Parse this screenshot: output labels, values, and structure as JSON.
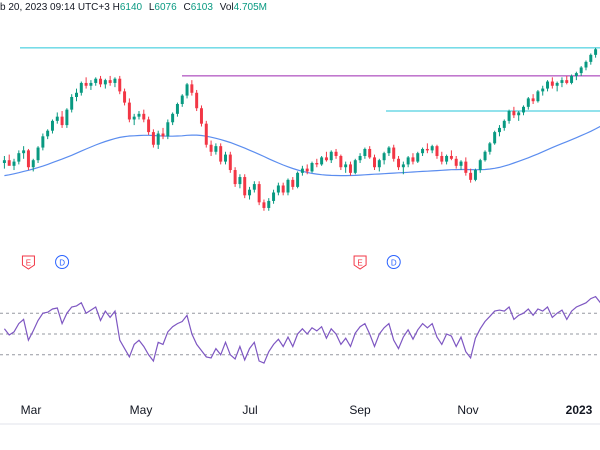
{
  "header": {
    "date_text": "b 20, 2023 09:14 UTC+3",
    "high_label": "H",
    "high_value": "6140",
    "low_label": "L",
    "low_value": "6076",
    "close_label": "C",
    "close_value": "6103",
    "vol_label": "Vol",
    "vol_value": "4.705M"
  },
  "colors": {
    "up": "#089981",
    "down": "#f23645",
    "ma": "#5b8def",
    "rsi": "#7e57c2",
    "cyan_line": "#26c6da",
    "purple_line": "#9c27b0",
    "grid_dash": "#9598a1",
    "earnings_badge": "#f23645",
    "dividend_badge": "#2962ff",
    "axis_text": "#131722"
  },
  "chart_data": [
    {
      "type": "candlestick",
      "title": "",
      "x_labels": [
        "Mar",
        "May",
        "Jul",
        "Sep",
        "Nov",
        "2023"
      ],
      "candles": [
        [
          4870,
          4920,
          4830,
          4890
        ],
        [
          4890,
          4930,
          4860,
          4850
        ],
        [
          4850,
          4900,
          4820,
          4880
        ],
        [
          4880,
          4960,
          4860,
          4940
        ],
        [
          4940,
          4990,
          4900,
          4960
        ],
        [
          4960,
          4970,
          4820,
          4840
        ],
        [
          4840,
          4900,
          4810,
          4890
        ],
        [
          4890,
          4990,
          4870,
          4980
        ],
        [
          4980,
          5080,
          4960,
          5060
        ],
        [
          5060,
          5110,
          5040,
          5100
        ],
        [
          5100,
          5180,
          5080,
          5170
        ],
        [
          5170,
          5230,
          5150,
          5200
        ],
        [
          5200,
          5240,
          5120,
          5140
        ],
        [
          5140,
          5260,
          5120,
          5250
        ],
        [
          5250,
          5360,
          5230,
          5340
        ],
        [
          5340,
          5400,
          5310,
          5370
        ],
        [
          5370,
          5450,
          5350,
          5440
        ],
        [
          5440,
          5480,
          5400,
          5420
        ],
        [
          5420,
          5460,
          5390,
          5440
        ],
        [
          5440,
          5480,
          5420,
          5470
        ],
        [
          5470,
          5490,
          5410,
          5430
        ],
        [
          5430,
          5470,
          5400,
          5460
        ],
        [
          5460,
          5490,
          5420,
          5440
        ],
        [
          5440,
          5480,
          5410,
          5470
        ],
        [
          5470,
          5490,
          5360,
          5380
        ],
        [
          5380,
          5400,
          5280,
          5300
        ],
        [
          5300,
          5330,
          5160,
          5180
        ],
        [
          5180,
          5220,
          5140,
          5200
        ],
        [
          5200,
          5240,
          5180,
          5220
        ],
        [
          5220,
          5250,
          5160,
          5180
        ],
        [
          5180,
          5200,
          5070,
          5090
        ],
        [
          5090,
          5110,
          4980,
          5000
        ],
        [
          5000,
          5100,
          4970,
          5080
        ],
        [
          5080,
          5120,
          5040,
          5060
        ],
        [
          5060,
          5180,
          5040,
          5160
        ],
        [
          5160,
          5230,
          5140,
          5220
        ],
        [
          5220,
          5300,
          5200,
          5290
        ],
        [
          5290,
          5360,
          5270,
          5350
        ],
        [
          5350,
          5440,
          5330,
          5430
        ],
        [
          5430,
          5460,
          5350,
          5370
        ],
        [
          5370,
          5390,
          5240,
          5260
        ],
        [
          5260,
          5280,
          5130,
          5150
        ],
        [
          5150,
          5170,
          4980,
          5000
        ],
        [
          5000,
          5030,
          4920,
          4950
        ],
        [
          4950,
          5010,
          4930,
          4990
        ],
        [
          4990,
          5010,
          4860,
          4880
        ],
        [
          4880,
          4950,
          4860,
          4930
        ],
        [
          4930,
          4950,
          4800,
          4820
        ],
        [
          4820,
          4840,
          4700,
          4720
        ],
        [
          4720,
          4790,
          4690,
          4770
        ],
        [
          4770,
          4790,
          4620,
          4640
        ],
        [
          4640,
          4700,
          4610,
          4680
        ],
        [
          4680,
          4740,
          4660,
          4720
        ],
        [
          4720,
          4740,
          4570,
          4590
        ],
        [
          4590,
          4610,
          4530,
          4550
        ],
        [
          4550,
          4620,
          4530,
          4600
        ],
        [
          4600,
          4680,
          4580,
          4660
        ],
        [
          4660,
          4730,
          4640,
          4710
        ],
        [
          4710,
          4730,
          4640,
          4660
        ],
        [
          4660,
          4760,
          4640,
          4750
        ],
        [
          4750,
          4770,
          4680,
          4700
        ],
        [
          4700,
          4810,
          4690,
          4800
        ],
        [
          4800,
          4850,
          4780,
          4830
        ],
        [
          4830,
          4860,
          4790,
          4810
        ],
        [
          4810,
          4880,
          4800,
          4870
        ],
        [
          4870,
          4900,
          4840,
          4860
        ],
        [
          4860,
          4920,
          4850,
          4910
        ],
        [
          4910,
          4950,
          4880,
          4890
        ],
        [
          4890,
          4960,
          4870,
          4950
        ],
        [
          4950,
          4970,
          4900,
          4920
        ],
        [
          4920,
          4930,
          4820,
          4840
        ],
        [
          4840,
          4880,
          4800,
          4860
        ],
        [
          4860,
          4880,
          4780,
          4800
        ],
        [
          4800,
          4900,
          4790,
          4890
        ],
        [
          4890,
          4940,
          4870,
          4920
        ],
        [
          4920,
          4980,
          4900,
          4970
        ],
        [
          4970,
          4990,
          4900,
          4910
        ],
        [
          4910,
          4930,
          4820,
          4840
        ],
        [
          4840,
          4900,
          4810,
          4890
        ],
        [
          4890,
          4950,
          4860,
          4940
        ],
        [
          4940,
          4990,
          4920,
          4980
        ],
        [
          4980,
          5000,
          4880,
          4900
        ],
        [
          4900,
          4920,
          4820,
          4840
        ],
        [
          4840,
          4880,
          4790,
          4860
        ],
        [
          4860,
          4920,
          4840,
          4910
        ],
        [
          4910,
          4940,
          4860,
          4880
        ],
        [
          4880,
          4950,
          4870,
          4940
        ],
        [
          4940,
          4980,
          4920,
          4970
        ],
        [
          4970,
          5010,
          4940,
          4960
        ],
        [
          4960,
          5000,
          4940,
          4990
        ],
        [
          4990,
          5000,
          4900,
          4920
        ],
        [
          4920,
          4950,
          4860,
          4880
        ],
        [
          4880,
          4930,
          4860,
          4920
        ],
        [
          4920,
          4960,
          4890,
          4900
        ],
        [
          4900,
          4920,
          4830,
          4850
        ],
        [
          4850,
          4890,
          4820,
          4880
        ],
        [
          4880,
          4910,
          4780,
          4800
        ],
        [
          4800,
          4830,
          4730,
          4750
        ],
        [
          4750,
          4830,
          4740,
          4820
        ],
        [
          4820,
          4900,
          4800,
          4890
        ],
        [
          4890,
          4960,
          4880,
          4950
        ],
        [
          4950,
          5020,
          4930,
          5010
        ],
        [
          5010,
          5100,
          5000,
          5090
        ],
        [
          5090,
          5140,
          5060,
          5120
        ],
        [
          5120,
          5180,
          5100,
          5170
        ],
        [
          5170,
          5250,
          5150,
          5240
        ],
        [
          5240,
          5270,
          5190,
          5210
        ],
        [
          5210,
          5240,
          5170,
          5230
        ],
        [
          5230,
          5280,
          5210,
          5270
        ],
        [
          5270,
          5340,
          5250,
          5330
        ],
        [
          5330,
          5360,
          5290,
          5310
        ],
        [
          5310,
          5390,
          5300,
          5380
        ],
        [
          5380,
          5420,
          5350,
          5400
        ],
        [
          5400,
          5460,
          5380,
          5450
        ],
        [
          5450,
          5480,
          5400,
          5420
        ],
        [
          5420,
          5450,
          5380,
          5440
        ],
        [
          5440,
          5480,
          5410,
          5460
        ],
        [
          5460,
          5490,
          5430,
          5440
        ],
        [
          5440,
          5500,
          5430,
          5490
        ],
        [
          5490,
          5520,
          5460,
          5510
        ],
        [
          5510,
          5560,
          5490,
          5550
        ],
        [
          5550,
          5600,
          5530,
          5590
        ],
        [
          5590,
          5650,
          5570,
          5640
        ],
        [
          5640,
          5690,
          5620,
          5680
        ]
      ],
      "moving_average": [
        4780,
        4786,
        4793,
        4801,
        4810,
        4818,
        4827,
        4837,
        4848,
        4860,
        4873,
        4886,
        4898,
        4911,
        4925,
        4940,
        4955,
        4970,
        4984,
        4998,
        5011,
        5023,
        5034,
        5044,
        5052,
        5058,
        5062,
        5064,
        5066,
        5067,
        5067,
        5066,
        5064,
        5062,
        5061,
        5061,
        5062,
        5064,
        5067,
        5069,
        5069,
        5066,
        5061,
        5054,
        5046,
        5037,
        5027,
        5016,
        5003,
        4990,
        4976,
        4961,
        4947,
        4932,
        4916,
        4900,
        4885,
        4870,
        4856,
        4843,
        4831,
        4820,
        4811,
        4803,
        4796,
        4791,
        4787,
        4784,
        4782,
        4781,
        4780,
        4780,
        4781,
        4782,
        4784,
        4786,
        4788,
        4790,
        4792,
        4794,
        4796,
        4798,
        4800,
        4802,
        4804,
        4806,
        4808,
        4810,
        4812,
        4814,
        4816,
        4818,
        4820,
        4822,
        4823,
        4824,
        4824,
        4823,
        4822,
        4822,
        4824,
        4827,
        4832,
        4839,
        4848,
        4858,
        4870,
        4882,
        4894,
        4907,
        4921,
        4935,
        4950,
        4965,
        4980,
        4994,
        5008,
        5022,
        5036,
        5050,
        5065,
        5080,
        5096,
        5113,
        5131
      ],
      "horizontal_levels": [
        {
          "value": 5690,
          "color": "cyan"
        },
        {
          "value": 5490,
          "color": "purple"
        },
        {
          "value": 5240,
          "color": "cyan"
        }
      ],
      "event_badges": [
        {
          "label": "E",
          "type": "earnings",
          "index": 5
        },
        {
          "label": "D",
          "type": "dividend",
          "index": 12
        },
        {
          "label": "E",
          "type": "earnings",
          "index": 74
        },
        {
          "label": "D",
          "type": "dividend",
          "index": 81
        }
      ]
    },
    {
      "type": "line",
      "title": "",
      "series": [
        {
          "values": [
            55,
            49,
            52,
            60,
            64,
            44,
            53,
            63,
            70,
            71,
            74,
            75,
            60,
            70,
            76,
            77,
            80,
            70,
            73,
            76,
            63,
            72,
            66,
            72,
            44,
            36,
            28,
            40,
            44,
            38,
            30,
            24,
            42,
            40,
            52,
            57,
            60,
            62,
            68,
            50,
            40,
            34,
            28,
            27,
            36,
            30,
            42,
            30,
            26,
            38,
            25,
            36,
            42,
            24,
            22,
            33,
            40,
            45,
            38,
            47,
            38,
            50,
            55,
            50,
            56,
            53,
            57,
            46,
            55,
            50,
            40,
            46,
            38,
            51,
            57,
            60,
            50,
            38,
            50,
            56,
            60,
            44,
            36,
            47,
            54,
            45,
            54,
            60,
            56,
            60,
            47,
            40,
            50,
            48,
            38,
            47,
            33,
            27,
            46,
            55,
            62,
            67,
            72,
            73,
            72,
            76,
            64,
            68,
            70,
            74,
            68,
            74,
            72,
            76,
            66,
            70,
            73,
            64,
            72,
            76,
            78,
            80,
            84,
            86,
            80
          ]
        }
      ],
      "ylim": [
        0,
        100
      ],
      "reference_levels": [
        70,
        50,
        30
      ]
    }
  ]
}
